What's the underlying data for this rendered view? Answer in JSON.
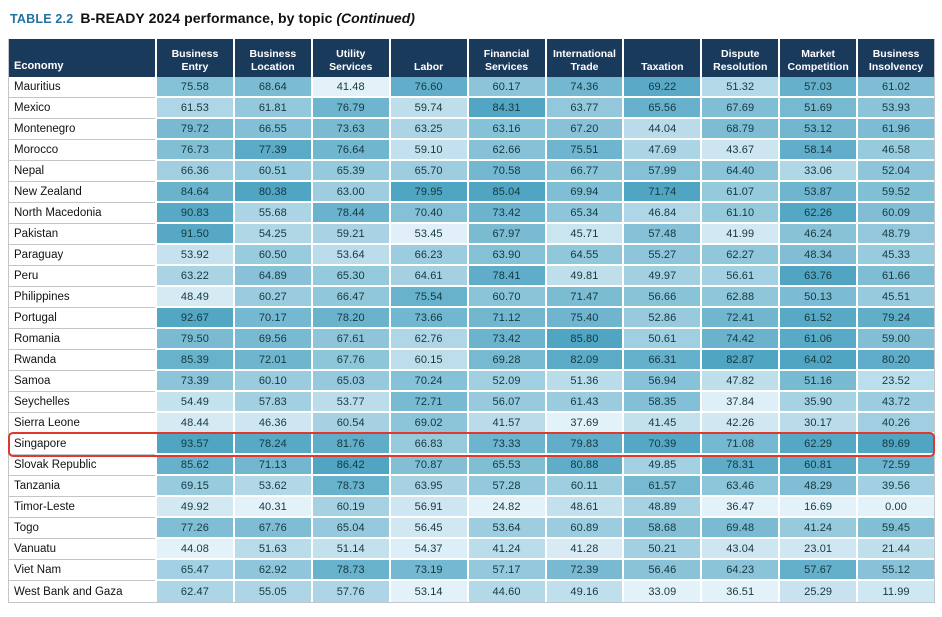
{
  "title": {
    "label": "TABLE 2.2",
    "text": "B-READY 2024 performance, by topic",
    "continued": "(Continued)"
  },
  "colors": {
    "header_bg": "#1a3a5c",
    "title_accent": "#2272a3",
    "highlight_border": "#df382d",
    "heatmap_light": "#e3f1f9",
    "heatmap_dark": "#50a5c3"
  },
  "table": {
    "economy_header": "Economy",
    "columns": [
      "Business Entry",
      "Business Location",
      "Utility Services",
      "Labor",
      "Financial Services",
      "International Trade",
      "Taxation",
      "Dispute Resolution",
      "Market Competition",
      "Business Insolvency"
    ],
    "rows": [
      {
        "economy": "Mauritius",
        "values": [
          75.58,
          68.64,
          41.48,
          76.6,
          60.17,
          74.36,
          69.22,
          51.32,
          57.03,
          61.02
        ]
      },
      {
        "economy": "Mexico",
        "values": [
          61.53,
          61.81,
          76.79,
          59.74,
          84.31,
          63.77,
          65.56,
          67.69,
          51.69,
          53.93
        ]
      },
      {
        "economy": "Montenegro",
        "values": [
          79.72,
          66.55,
          73.63,
          63.25,
          63.16,
          67.2,
          44.04,
          68.79,
          53.12,
          61.96
        ]
      },
      {
        "economy": "Morocco",
        "values": [
          76.73,
          77.39,
          76.64,
          59.1,
          62.66,
          75.51,
          47.69,
          43.67,
          58.14,
          46.58
        ]
      },
      {
        "economy": "Nepal",
        "values": [
          66.36,
          60.51,
          65.39,
          65.7,
          70.58,
          66.77,
          57.99,
          64.4,
          33.06,
          52.04
        ]
      },
      {
        "economy": "New Zealand",
        "values": [
          84.64,
          80.38,
          63.0,
          79.95,
          85.04,
          69.94,
          71.74,
          61.07,
          53.87,
          59.52
        ]
      },
      {
        "economy": "North Macedonia",
        "values": [
          90.83,
          55.68,
          78.44,
          70.4,
          73.42,
          65.34,
          46.84,
          61.1,
          62.26,
          60.09
        ]
      },
      {
        "economy": "Pakistan",
        "values": [
          91.5,
          54.25,
          59.21,
          53.45,
          67.97,
          45.71,
          57.48,
          41.99,
          46.24,
          48.79
        ]
      },
      {
        "economy": "Paraguay",
        "values": [
          53.92,
          60.5,
          53.64,
          66.23,
          63.9,
          64.55,
          55.27,
          62.27,
          48.34,
          45.33
        ]
      },
      {
        "economy": "Peru",
        "values": [
          63.22,
          64.89,
          65.3,
          64.61,
          78.41,
          49.81,
          49.97,
          56.61,
          63.76,
          61.66
        ]
      },
      {
        "economy": "Philippines",
        "values": [
          48.49,
          60.27,
          66.47,
          75.54,
          60.7,
          71.47,
          56.66,
          62.88,
          50.13,
          45.51
        ]
      },
      {
        "economy": "Portugal",
        "values": [
          92.67,
          70.17,
          78.2,
          73.66,
          71.12,
          75.4,
          52.86,
          72.41,
          61.52,
          79.24
        ]
      },
      {
        "economy": "Romania",
        "values": [
          79.5,
          69.56,
          67.61,
          62.76,
          73.42,
          85.8,
          50.61,
          74.42,
          61.06,
          59.0
        ]
      },
      {
        "economy": "Rwanda",
        "values": [
          85.39,
          72.01,
          67.76,
          60.15,
          69.28,
          82.09,
          66.31,
          82.87,
          64.02,
          80.2
        ]
      },
      {
        "economy": "Samoa",
        "values": [
          73.39,
          60.1,
          65.03,
          70.24,
          52.09,
          51.36,
          56.94,
          47.82,
          51.16,
          23.52
        ]
      },
      {
        "economy": "Seychelles",
        "values": [
          54.49,
          57.83,
          53.77,
          72.71,
          56.07,
          61.43,
          58.35,
          37.84,
          35.9,
          43.72
        ]
      },
      {
        "economy": "Sierra Leone",
        "values": [
          48.44,
          46.36,
          60.54,
          69.02,
          41.57,
          37.69,
          41.45,
          42.26,
          30.17,
          40.26
        ]
      },
      {
        "economy": "Singapore",
        "highlight": true,
        "values": [
          93.57,
          78.24,
          81.76,
          66.83,
          73.33,
          79.83,
          70.39,
          71.08,
          62.29,
          89.69
        ]
      },
      {
        "economy": "Slovak Republic",
        "values": [
          85.62,
          71.13,
          86.42,
          70.87,
          65.53,
          80.88,
          49.85,
          78.31,
          60.81,
          72.59
        ]
      },
      {
        "economy": "Tanzania",
        "values": [
          69.15,
          53.62,
          78.73,
          63.95,
          57.28,
          60.11,
          61.57,
          63.46,
          48.29,
          39.56
        ]
      },
      {
        "economy": "Timor-Leste",
        "values": [
          49.92,
          40.31,
          60.19,
          56.91,
          24.82,
          48.61,
          48.89,
          36.47,
          16.69,
          0.0
        ]
      },
      {
        "economy": "Togo",
        "values": [
          77.26,
          67.76,
          65.04,
          56.45,
          53.64,
          60.89,
          58.68,
          69.48,
          41.24,
          59.45
        ]
      },
      {
        "economy": "Vanuatu",
        "values": [
          44.08,
          51.63,
          51.14,
          54.37,
          41.24,
          41.28,
          50.21,
          43.04,
          23.01,
          21.44
        ]
      },
      {
        "economy": "Viet Nam",
        "values": [
          65.47,
          62.92,
          78.73,
          73.19,
          57.17,
          72.39,
          56.46,
          64.23,
          57.67,
          55.12
        ]
      },
      {
        "economy": "West Bank and Gaza",
        "values": [
          62.47,
          55.05,
          57.76,
          53.14,
          44.6,
          49.16,
          33.09,
          36.51,
          25.29,
          11.99
        ]
      }
    ]
  }
}
